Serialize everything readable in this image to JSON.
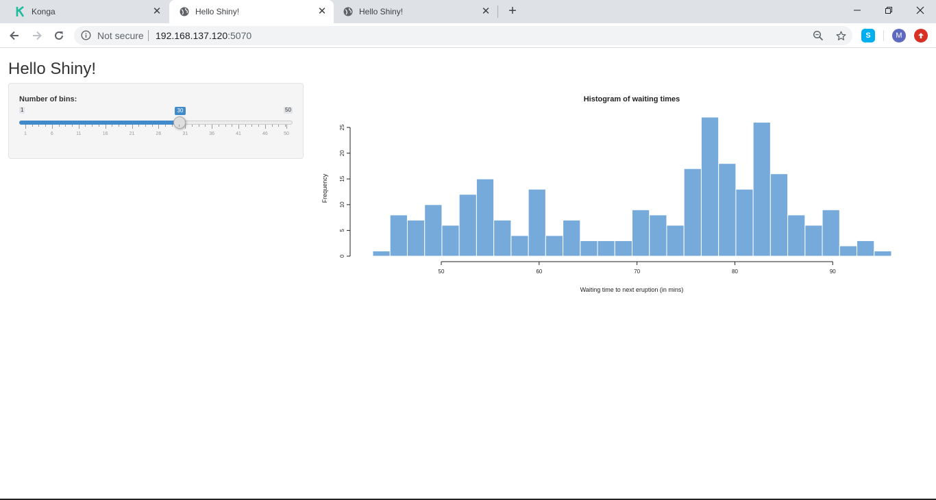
{
  "browser": {
    "tabs": [
      {
        "label": "Konga",
        "icon": "konga-logo-icon",
        "active": false
      },
      {
        "label": "Hello Shiny!",
        "icon": "globe-icon",
        "active": true
      },
      {
        "label": "Hello Shiny!",
        "icon": "globe-icon",
        "active": false
      }
    ],
    "address": {
      "security_label": "Not secure",
      "host": "192.168.137.120",
      "port": ":5070"
    },
    "profile_initial": "M",
    "accent": "#4285f4"
  },
  "app": {
    "title": "Hello Shiny!",
    "slider": {
      "label": "Number of bins:",
      "min": 1,
      "max": 50,
      "value": 30,
      "min_label": "1",
      "max_label": "50",
      "value_label": "30",
      "grid_labels": [
        "1",
        "6",
        "11",
        "16",
        "21",
        "26",
        "31",
        "36",
        "41",
        "46",
        "50"
      ],
      "color": "#428bca"
    }
  },
  "chart_data": {
    "type": "bar",
    "title": "Histogram of waiting times",
    "xlabel": "Waiting time to next eruption (in mins)",
    "ylabel": "Frequency",
    "bar_color": "#75AADB",
    "xlim": [
      43,
      96
    ],
    "ylim": [
      0,
      27
    ],
    "xticks": [
      50,
      60,
      70,
      80,
      90
    ],
    "yticks": [
      0,
      5,
      10,
      15,
      20,
      25
    ],
    "bin_start": 43,
    "bin_width": 1.7667,
    "values": [
      1,
      8,
      7,
      10,
      6,
      12,
      15,
      7,
      4,
      13,
      4,
      7,
      3,
      3,
      3,
      9,
      8,
      6,
      17,
      27,
      18,
      13,
      26,
      16,
      8,
      6,
      9,
      2,
      3,
      1
    ]
  }
}
